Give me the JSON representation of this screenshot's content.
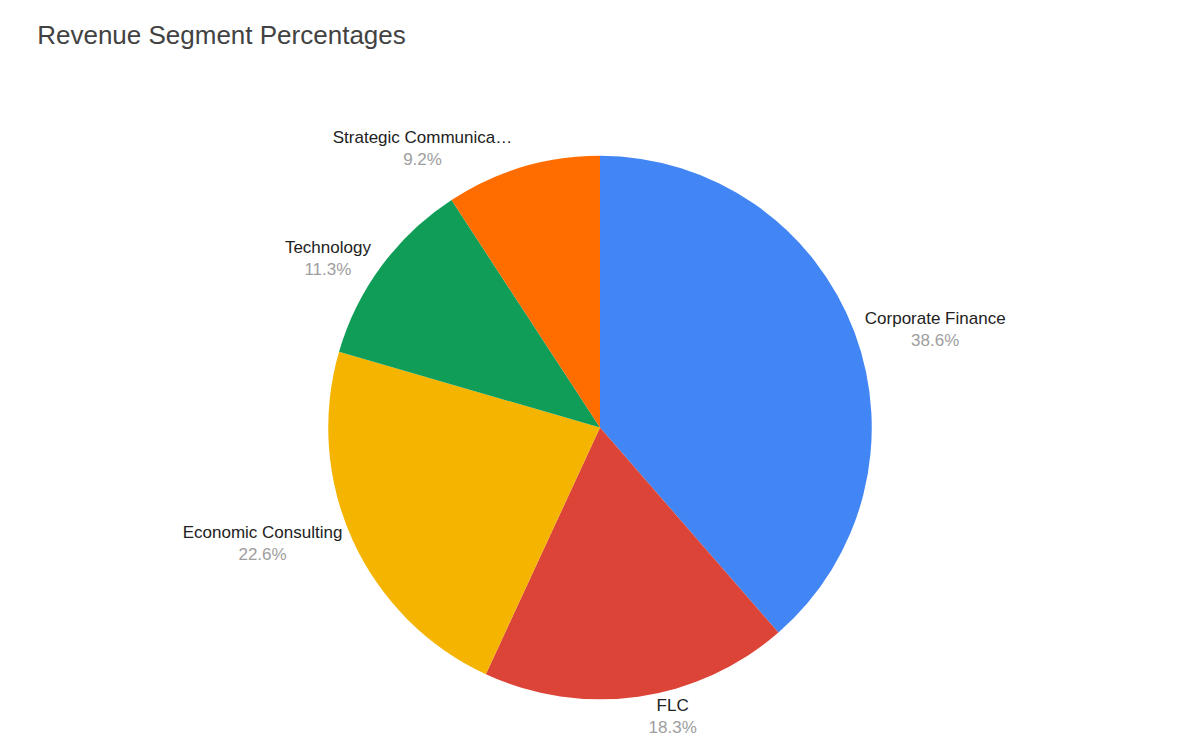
{
  "chart_data": {
    "type": "pie",
    "title": "Revenue Segment Percentages",
    "categories": [
      "Corporate Finance",
      "FLC",
      "Economic Consulting",
      "Technology",
      "Strategic Communica…"
    ],
    "values": [
      38.6,
      18.3,
      22.6,
      11.3,
      9.2
    ],
    "value_labels": [
      "38.6%",
      "18.3%",
      "22.6%",
      "11.3%",
      "9.2%"
    ],
    "colors": [
      "#4285f4",
      "#db4437",
      "#f4b400",
      "#0f9d58",
      "#ff6d00"
    ],
    "data_labels": true
  }
}
